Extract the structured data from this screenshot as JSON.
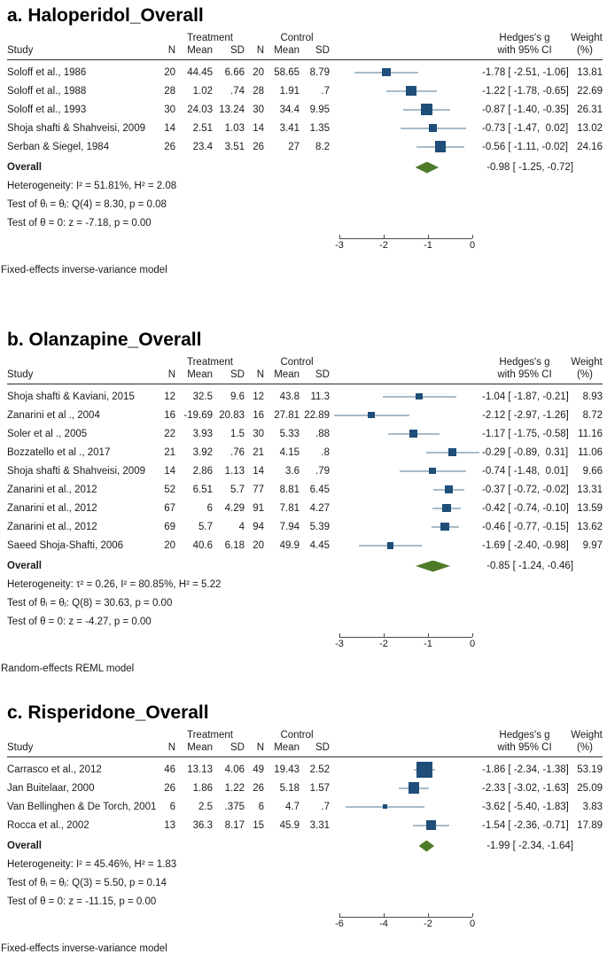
{
  "colors": {
    "marker_square": "#1f4e79",
    "ci_line": "#a8bccb",
    "overall_diamond": "#4e7b2a",
    "axis": "#4a4a4a",
    "text": "#1a1a1a"
  },
  "columns": {
    "study": "Study",
    "treatment_group": "Treatment",
    "control_group": "Control",
    "n": "N",
    "mean": "Mean",
    "sd": "SD",
    "effect_line1": "Hedges's g",
    "effect_line2": "with 95% CI",
    "weight_line1": "Weight",
    "weight_line2": "(%)"
  },
  "chart_data": [
    {
      "type": "forest",
      "title": "a. Haloperidol_Overall",
      "axis": {
        "min": -3,
        "max": 0,
        "ticks": [
          -3,
          -2,
          -1,
          0
        ],
        "tick_labels": [
          "-3",
          "-2",
          "-1",
          "0"
        ]
      },
      "studies": [
        {
          "study": "Soloff et al., 1986",
          "n1": "20",
          "mean1": "44.45",
          "sd1": "6.66",
          "n2": "20",
          "mean2": "58.65",
          "sd2": "8.79",
          "est": -1.78,
          "lo": -2.51,
          "hi": -1.06,
          "ci_text": "-1.78 [ -2.51, -1.06]",
          "weight": 13.81,
          "weight_text": "13.81"
        },
        {
          "study": "Soloff et al., 1988",
          "n1": "28",
          "mean1": "1.02",
          "sd1": ".74",
          "n2": "28",
          "mean2": "1.91",
          "sd2": ".7",
          "est": -1.22,
          "lo": -1.78,
          "hi": -0.65,
          "ci_text": "-1.22 [ -1.78, -0.65]",
          "weight": 22.69,
          "weight_text": "22.69"
        },
        {
          "study": "Soloff et al., 1993",
          "n1": "30",
          "mean1": "24.03",
          "sd1": "13.24",
          "n2": "30",
          "mean2": "34.4",
          "sd2": "9.95",
          "est": -0.87,
          "lo": -1.4,
          "hi": -0.35,
          "ci_text": "-0.87 [ -1.40, -0.35]",
          "weight": 26.31,
          "weight_text": "26.31"
        },
        {
          "study": "Shoja shafti & Shahveisi, 2009",
          "n1": "14",
          "mean1": "2.51",
          "sd1": "1.03",
          "n2": "14",
          "mean2": "3.41",
          "sd2": "1.35",
          "est": -0.73,
          "lo": -1.47,
          "hi": 0.02,
          "ci_text": "-0.73 [ -1.47,  0.02]",
          "weight": 13.02,
          "weight_text": "13.02"
        },
        {
          "study": "Serban & Siegel, 1984",
          "n1": "26",
          "mean1": "23.4",
          "sd1": "3.51",
          "n2": "26",
          "mean2": "27",
          "sd2": "8.2",
          "est": -0.56,
          "lo": -1.11,
          "hi": -0.02,
          "ci_text": "-0.56 [ -1.11, -0.02]",
          "weight": 24.16,
          "weight_text": "24.16"
        }
      ],
      "overall": {
        "label": "Overall",
        "est": -0.98,
        "lo": -1.25,
        "hi": -0.72,
        "ci_text": "-0.98 [ -1.25, -0.72]"
      },
      "stats": [
        "Heterogeneity: I² = 51.81%, H² = 2.08",
        "Test of θᵢ = θⱼ: Q(4) = 8.30, p = 0.08",
        "Test of θ = 0: z = -7.18, p = 0.00"
      ],
      "model_note": "Fixed-effects inverse-variance model"
    },
    {
      "type": "forest",
      "title": "b. Olanzapine_Overall",
      "axis": {
        "min": -3,
        "max": 0,
        "ticks": [
          -3,
          -2,
          -1,
          0
        ],
        "tick_labels": [
          "-3",
          "-2",
          "-1",
          "0"
        ]
      },
      "studies": [
        {
          "study": "Shoja shafti & Kaviani, 2015",
          "n1": "12",
          "mean1": "32.5",
          "sd1": "9.6",
          "n2": "12",
          "mean2": "43.8",
          "sd2": "11.3",
          "est": -1.04,
          "lo": -1.87,
          "hi": -0.21,
          "ci_text": "-1.04 [ -1.87, -0.21]",
          "weight": 8.93,
          "weight_text": "8.93"
        },
        {
          "study": "Zanarini et al ., 2004",
          "n1": "16",
          "mean1": "-19.69",
          "sd1": "20.83",
          "n2": "16",
          "mean2": "27.81",
          "sd2": "22.89",
          "est": -2.12,
          "lo": -2.97,
          "hi": -1.26,
          "ci_text": "-2.12 [ -2.97, -1.26]",
          "weight": 8.72,
          "weight_text": "8.72"
        },
        {
          "study": "Soler et al ., 2005",
          "n1": "22",
          "mean1": "3.93",
          "sd1": "1.5",
          "n2": "30",
          "mean2": "5.33",
          "sd2": ".88",
          "est": -1.17,
          "lo": -1.75,
          "hi": -0.58,
          "ci_text": "-1.17 [ -1.75, -0.58]",
          "weight": 11.16,
          "weight_text": "11.16"
        },
        {
          "study": "Bozzatello et al ., 2017",
          "n1": "21",
          "mean1": "3.92",
          "sd1": ".76",
          "n2": "21",
          "mean2": "4.15",
          "sd2": ".8",
          "est": -0.29,
          "lo": -0.89,
          "hi": 0.31,
          "ci_text": "-0.29 [ -0.89,  0.31]",
          "weight": 11.06,
          "weight_text": "11.06"
        },
        {
          "study": "Shoja shafti & Shahveisi, 2009",
          "n1": "14",
          "mean1": "2.86",
          "sd1": "1.13",
          "n2": "14",
          "mean2": "3.6",
          "sd2": ".79",
          "est": -0.74,
          "lo": -1.48,
          "hi": 0.01,
          "ci_text": "-0.74 [ -1.48,  0.01]",
          "weight": 9.66,
          "weight_text": "9.66"
        },
        {
          "study": "Zanarini et al., 2012",
          "n1": "52",
          "mean1": "6.51",
          "sd1": "5.7",
          "n2": "77",
          "mean2": "8.81",
          "sd2": "6.45",
          "est": -0.37,
          "lo": -0.72,
          "hi": -0.02,
          "ci_text": "-0.37 [ -0.72, -0.02]",
          "weight": 13.31,
          "weight_text": "13.31"
        },
        {
          "study": "Zanarini et al., 2012",
          "n1": "67",
          "mean1": "6",
          "sd1": "4.29",
          "n2": "91",
          "mean2": "7.81",
          "sd2": "4.27",
          "est": -0.42,
          "lo": -0.74,
          "hi": -0.1,
          "ci_text": "-0.42 [ -0.74, -0.10]",
          "weight": 13.59,
          "weight_text": "13.59"
        },
        {
          "study": "Zanarini et al., 2012",
          "n1": "69",
          "mean1": "5.7",
          "sd1": "4",
          "n2": "94",
          "mean2": "7.94",
          "sd2": "5.39",
          "est": -0.46,
          "lo": -0.77,
          "hi": -0.15,
          "ci_text": "-0.46 [ -0.77, -0.15]",
          "weight": 13.62,
          "weight_text": "13.62"
        },
        {
          "study": "Saeed Shoja-Shafti, 2006",
          "n1": "20",
          "mean1": "40.6",
          "sd1": "6.18",
          "n2": "20",
          "mean2": "49.9",
          "sd2": "4.45",
          "est": -1.69,
          "lo": -2.4,
          "hi": -0.98,
          "ci_text": "-1.69 [ -2.40, -0.98]",
          "weight": 9.97,
          "weight_text": "9.97"
        }
      ],
      "overall": {
        "label": "Overall",
        "est": -0.85,
        "lo": -1.24,
        "hi": -0.46,
        "ci_text": "-0.85 [ -1.24, -0.46]"
      },
      "stats": [
        "Heterogeneity: τ² = 0.26, I² = 80.85%, H² = 5.22",
        "Test of θᵢ = θⱼ: Q(8) = 30.63, p = 0.00",
        "Test of θ = 0: z = -4.27, p = 0.00"
      ],
      "model_note": "Random-effects REML model"
    },
    {
      "type": "forest",
      "title": "c. Risperidone_Overall",
      "axis": {
        "min": -6,
        "max": 0,
        "ticks": [
          -6,
          -4,
          -2,
          0
        ],
        "tick_labels": [
          "-6",
          "-4",
          "-2",
          "0"
        ]
      },
      "studies": [
        {
          "study": "Carrasco et al., 2012",
          "n1": "46",
          "mean1": "13.13",
          "sd1": "4.06",
          "n2": "49",
          "mean2": "19.43",
          "sd2": "2.52",
          "est": -1.86,
          "lo": -2.34,
          "hi": -1.38,
          "ci_text": "-1.86 [ -2.34, -1.38]",
          "weight": 53.19,
          "weight_text": "53.19"
        },
        {
          "study": "Jan Buitelaar, 2000",
          "n1": "26",
          "mean1": "1.86",
          "sd1": "1.22",
          "n2": "26",
          "mean2": "5.18",
          "sd2": "1.57",
          "est": -2.33,
          "lo": -3.02,
          "hi": -1.63,
          "ci_text": "-2.33 [ -3.02, -1.63]",
          "weight": 25.09,
          "weight_text": "25.09"
        },
        {
          "study": "Van Bellinghen & De Torch, 2001",
          "n1": "6",
          "mean1": "2.5",
          "sd1": ".375",
          "n2": "6",
          "mean2": "4.7",
          "sd2": ".7",
          "est": -3.62,
          "lo": -5.4,
          "hi": -1.83,
          "ci_text": "-3.62 [ -5.40, -1.83]",
          "weight": 3.83,
          "weight_text": "3.83"
        },
        {
          "study": "Rocca et al., 2002",
          "n1": "13",
          "mean1": "36.3",
          "sd1": "8.17",
          "n2": "15",
          "mean2": "45.9",
          "sd2": "3.31",
          "est": -1.54,
          "lo": -2.36,
          "hi": -0.71,
          "ci_text": "-1.54 [ -2.36, -0.71]",
          "weight": 17.89,
          "weight_text": "17.89"
        }
      ],
      "overall": {
        "label": "Overall",
        "est": -1.99,
        "lo": -2.34,
        "hi": -1.64,
        "ci_text": "-1.99 [ -2.34, -1.64]"
      },
      "stats": [
        "Heterogeneity: I² = 45.46%, H² = 1.83",
        "Test of θᵢ = θⱼ: Q(3) = 5.50, p = 0.14",
        "Test of θ = 0: z = -11.15, p = 0.00"
      ],
      "model_note": "Fixed-effects inverse-variance model"
    }
  ]
}
